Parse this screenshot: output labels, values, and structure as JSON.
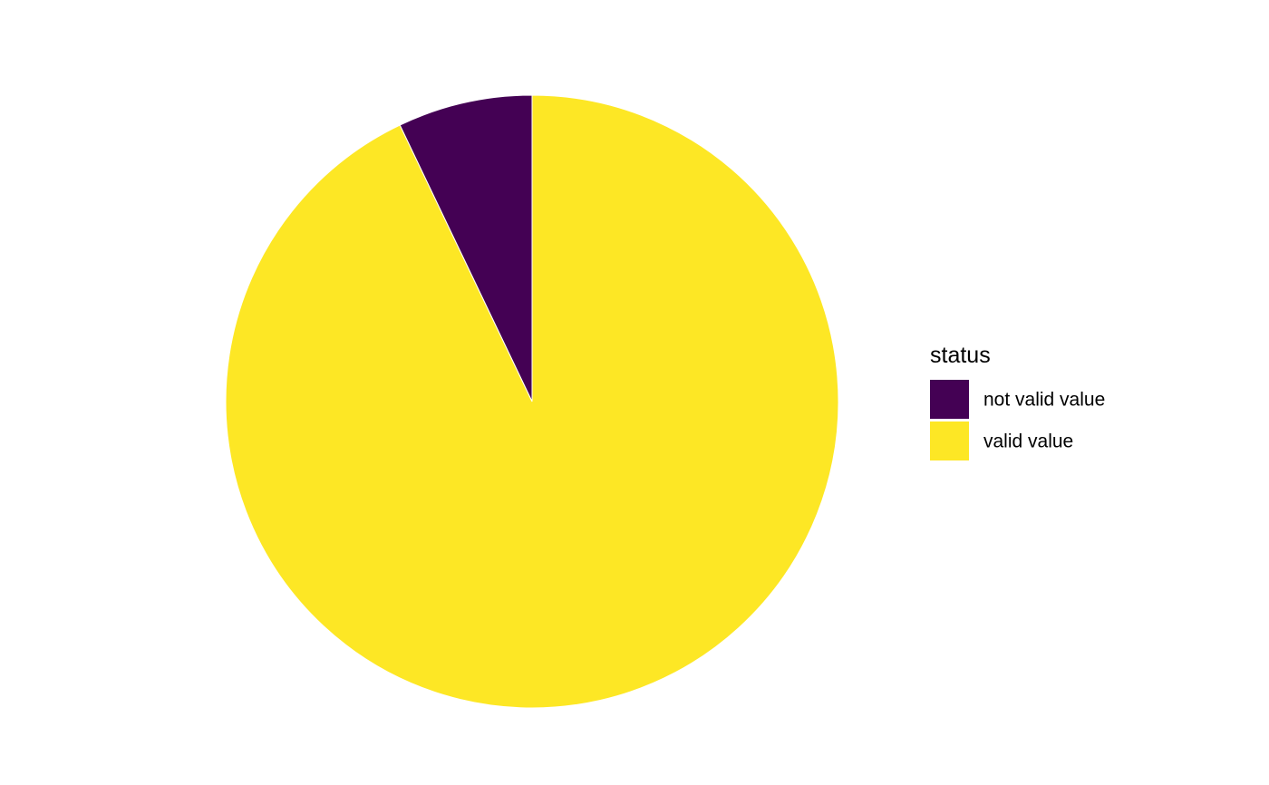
{
  "chart_data": {
    "type": "pie",
    "legend_title": "status",
    "legend_position": "right",
    "slices": [
      {
        "label": "not valid value",
        "value": 7.1,
        "color": "#440154"
      },
      {
        "label": "valid value",
        "value": 92.9,
        "color": "#FDE725"
      }
    ]
  }
}
